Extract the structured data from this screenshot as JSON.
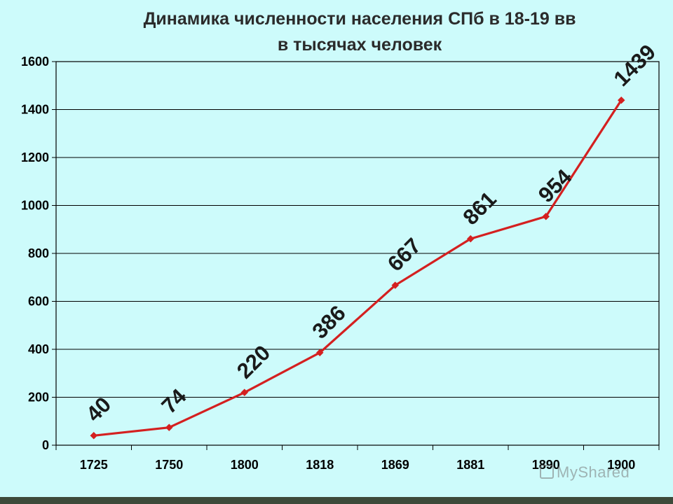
{
  "chart_data": {
    "type": "line",
    "title": "Динамика численности населения СПб в 18-19 вв",
    "subtitle": "в тысячах человек",
    "xlabel": "",
    "ylabel": "",
    "categories": [
      "1725",
      "1750",
      "1800",
      "1818",
      "1869",
      "1881",
      "1890",
      "1900"
    ],
    "series": [
      {
        "values": [
          40,
          74,
          220,
          386,
          667,
          861,
          954,
          1439
        ],
        "labels": [
          "40",
          "74",
          "220",
          "386",
          "667",
          "861",
          "954",
          "1439"
        ]
      }
    ],
    "ylim": [
      0,
      1600
    ],
    "yticks": [
      {
        "value": 0,
        "label": "0"
      },
      {
        "value": 200,
        "label": "200"
      },
      {
        "value": 400,
        "label": "400"
      },
      {
        "value": 600,
        "label": "600"
      },
      {
        "value": 800,
        "label": "800"
      },
      {
        "value": 1000,
        "label": "1000"
      },
      {
        "value": 1200,
        "label": "1200"
      },
      {
        "value": 1400,
        "label": "1400"
      },
      {
        "value": 1600,
        "label": "1600"
      }
    ],
    "grid": true,
    "legend": "none",
    "colors": {
      "background": "#cdfbfb",
      "line": "#d42020",
      "marker": "#d42020",
      "grid": "#000000"
    }
  },
  "watermark": {
    "text": "MyShared"
  }
}
